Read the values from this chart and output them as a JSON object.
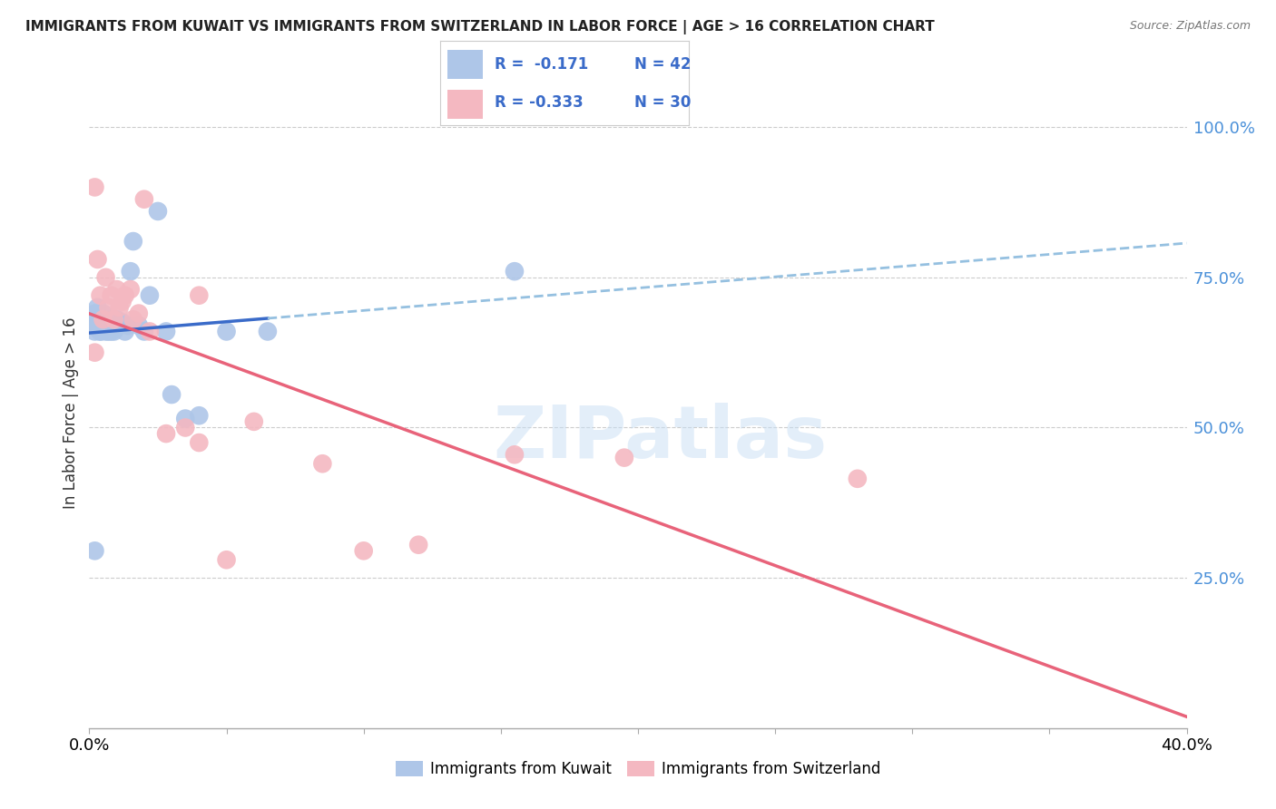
{
  "title": "IMMIGRANTS FROM KUWAIT VS IMMIGRANTS FROM SWITZERLAND IN LABOR FORCE | AGE > 16 CORRELATION CHART",
  "source": "Source: ZipAtlas.com",
  "ylabel": "In Labor Force | Age > 16",
  "xlim": [
    0.0,
    0.4
  ],
  "ylim": [
    0.0,
    1.05
  ],
  "x_ticks": [
    0.0,
    0.05,
    0.1,
    0.15,
    0.2,
    0.25,
    0.3,
    0.35,
    0.4
  ],
  "x_tick_labels": [
    "0.0%",
    "",
    "",
    "",
    "",
    "",
    "",
    "",
    "40.0%"
  ],
  "y_ticks_right": [
    0.25,
    0.5,
    0.75,
    1.0
  ],
  "y_tick_labels_right": [
    "25.0%",
    "50.0%",
    "75.0%",
    "100.0%"
  ],
  "kuwait_color": "#aec6e8",
  "switzerland_color": "#f4b8c1",
  "kuwait_line_color": "#3a6bc9",
  "switzerland_line_color": "#e8637a",
  "kuwait_dash_color": "#95c0e0",
  "legend_R_kuwait": "R =  -0.171",
  "legend_N_kuwait": "N = 42",
  "legend_R_switzerland": "R = -0.333",
  "legend_N_switzerland": "N = 30",
  "kuwait_x": [
    0.001,
    0.001,
    0.002,
    0.002,
    0.002,
    0.003,
    0.003,
    0.003,
    0.004,
    0.004,
    0.004,
    0.005,
    0.005,
    0.005,
    0.006,
    0.006,
    0.007,
    0.007,
    0.008,
    0.008,
    0.009,
    0.009,
    0.01,
    0.01,
    0.011,
    0.012,
    0.013,
    0.014,
    0.015,
    0.016,
    0.018,
    0.02,
    0.022,
    0.025,
    0.028,
    0.03,
    0.035,
    0.04,
    0.05,
    0.065,
    0.155,
    0.002
  ],
  "kuwait_y": [
    0.67,
    0.68,
    0.66,
    0.672,
    0.69,
    0.675,
    0.665,
    0.7,
    0.66,
    0.68,
    0.66,
    0.665,
    0.675,
    0.69,
    0.66,
    0.665,
    0.66,
    0.67,
    0.66,
    0.665,
    0.66,
    0.665,
    0.67,
    0.68,
    0.67,
    0.675,
    0.66,
    0.67,
    0.76,
    0.81,
    0.67,
    0.66,
    0.72,
    0.86,
    0.66,
    0.555,
    0.515,
    0.52,
    0.66,
    0.66,
    0.76,
    0.295
  ],
  "switzerland_x": [
    0.002,
    0.002,
    0.003,
    0.004,
    0.005,
    0.006,
    0.007,
    0.008,
    0.009,
    0.01,
    0.011,
    0.012,
    0.013,
    0.015,
    0.016,
    0.018,
    0.02,
    0.022,
    0.028,
    0.035,
    0.04,
    0.04,
    0.05,
    0.06,
    0.085,
    0.1,
    0.12,
    0.155,
    0.195,
    0.28
  ],
  "switzerland_y": [
    0.625,
    0.9,
    0.78,
    0.72,
    0.68,
    0.75,
    0.7,
    0.72,
    0.68,
    0.73,
    0.7,
    0.71,
    0.72,
    0.73,
    0.68,
    0.69,
    0.88,
    0.66,
    0.49,
    0.5,
    0.72,
    0.475,
    0.28,
    0.51,
    0.44,
    0.295,
    0.305,
    0.455,
    0.45,
    0.415
  ],
  "watermark": "ZIPatlas",
  "background_color": "#ffffff",
  "grid_color": "#cccccc"
}
